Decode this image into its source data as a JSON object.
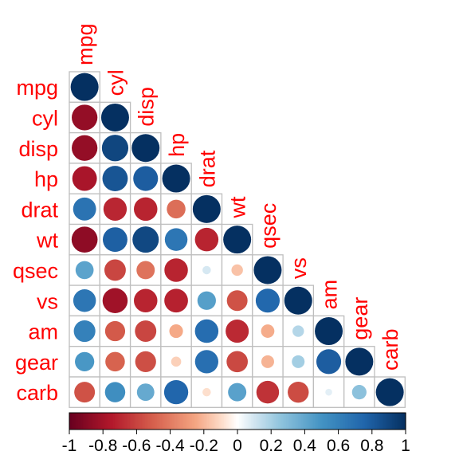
{
  "chart_data": {
    "type": "heatmap",
    "shape": "upper-triangle-lower-display circles",
    "variables": [
      "mpg",
      "cyl",
      "disp",
      "hp",
      "drat",
      "wt",
      "qsec",
      "vs",
      "am",
      "gear",
      "carb"
    ],
    "correlations": [
      [
        1.0,
        -0.85,
        -0.85,
        -0.78,
        0.68,
        -0.87,
        0.42,
        0.66,
        0.6,
        0.48,
        -0.55
      ],
      [
        -0.85,
        1.0,
        0.9,
        0.83,
        -0.7,
        0.78,
        -0.59,
        -0.81,
        -0.52,
        -0.49,
        0.53
      ],
      [
        -0.85,
        0.9,
        1.0,
        0.79,
        -0.71,
        0.89,
        -0.43,
        -0.71,
        -0.59,
        -0.56,
        0.39
      ],
      [
        -0.78,
        0.83,
        0.79,
        1.0,
        -0.45,
        0.66,
        -0.71,
        -0.72,
        -0.24,
        -0.13,
        0.75
      ],
      [
        0.68,
        -0.7,
        -0.71,
        -0.45,
        1.0,
        -0.71,
        0.09,
        0.44,
        0.71,
        0.7,
        -0.09
      ],
      [
        -0.87,
        0.78,
        0.89,
        0.66,
        -0.71,
        1.0,
        -0.17,
        -0.55,
        -0.69,
        -0.58,
        0.43
      ],
      [
        0.42,
        -0.59,
        -0.43,
        -0.71,
        0.09,
        -0.17,
        1.0,
        0.74,
        -0.23,
        -0.21,
        -0.66
      ],
      [
        0.66,
        -0.81,
        -0.71,
        -0.72,
        0.44,
        -0.55,
        0.74,
        1.0,
        0.17,
        0.21,
        -0.57
      ],
      [
        0.6,
        -0.52,
        -0.59,
        -0.24,
        0.71,
        -0.69,
        -0.23,
        0.17,
        1.0,
        0.79,
        0.06
      ],
      [
        0.48,
        -0.49,
        -0.56,
        -0.13,
        0.7,
        -0.58,
        -0.21,
        0.21,
        0.79,
        1.0,
        0.27
      ],
      [
        -0.55,
        0.53,
        0.39,
        0.75,
        -0.09,
        0.43,
        -0.66,
        -0.57,
        0.06,
        0.27,
        1.0
      ]
    ],
    "colorbar": {
      "ticks": [
        "-1",
        "-0.8",
        "-0.6",
        "-0.4",
        "-0.2",
        "0",
        "0.2",
        "0.4",
        "0.6",
        "0.8",
        "1"
      ],
      "range": [
        -1,
        1
      ]
    },
    "colors": {
      "negative_strong": "#67001F",
      "negative_mid": "#D6604D",
      "neutral": "#FFFFFF",
      "positive_mid": "#4393C3",
      "positive_strong": "#053061",
      "label": "#FF0000",
      "grid": "#BEBEBE"
    },
    "grid": true,
    "legend": "bottom"
  }
}
